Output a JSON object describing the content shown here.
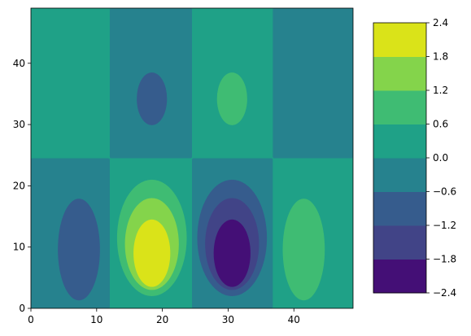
{
  "chart_data": [
    {
      "type": "heatmap",
      "style": "filled contour",
      "title": "",
      "xlabel": "",
      "ylabel": "",
      "xlim": [
        0,
        49
      ],
      "ylim": [
        0,
        49
      ],
      "x_ticks": [
        "0",
        "10",
        "20",
        "30",
        "40"
      ],
      "y_ticks": [
        "0",
        "10",
        "20",
        "30",
        "40"
      ],
      "x_tick_values": [
        0,
        10,
        20,
        30,
        40
      ],
      "y_tick_values": [
        0,
        10,
        20,
        30,
        40
      ],
      "grid": false,
      "regions": [
        {
          "kind": "rect",
          "x": [
            0,
            12
          ],
          "y": [
            24.5,
            49
          ],
          "level": "0.0 to 0.6"
        },
        {
          "kind": "rect",
          "x": [
            12,
            24.5
          ],
          "y": [
            24.5,
            49
          ],
          "level": "-0.6 to 0.0"
        },
        {
          "kind": "rect",
          "x": [
            24.5,
            36.8
          ],
          "y": [
            24.5,
            49
          ],
          "level": "0.0 to 0.6"
        },
        {
          "kind": "rect",
          "x": [
            36.8,
            49
          ],
          "y": [
            24.5,
            49
          ],
          "level": "-0.6 to 0.0"
        },
        {
          "kind": "rect",
          "x": [
            0,
            12
          ],
          "y": [
            0,
            24.5
          ],
          "level": "-0.6 to 0.0"
        },
        {
          "kind": "rect",
          "x": [
            12,
            24.5
          ],
          "y": [
            0,
            24.5
          ],
          "level": "0.0 to 0.6"
        },
        {
          "kind": "rect",
          "x": [
            24.5,
            36.8
          ],
          "y": [
            0,
            24.5
          ],
          "level": "-0.6 to 0.0"
        },
        {
          "kind": "rect",
          "x": [
            36.8,
            49
          ],
          "y": [
            0,
            24.5
          ],
          "level": "0.0 to 0.6"
        },
        {
          "kind": "ellipse",
          "cx": 18.4,
          "cy": 34.2,
          "rx": 2.3,
          "ry": 4.3,
          "level": "-1.2 to -0.6"
        },
        {
          "kind": "ellipse",
          "cx": 30.6,
          "cy": 34.2,
          "rx": 2.3,
          "ry": 4.3,
          "level": "0.6 to 1.2"
        },
        {
          "kind": "ellipse",
          "cx": 7.3,
          "cy": 9.6,
          "rx": 3.2,
          "ry": 8.3,
          "level": "-1.2 to -0.6"
        },
        {
          "kind": "ellipse",
          "cx": 41.5,
          "cy": 9.6,
          "rx": 3.2,
          "ry": 8.3,
          "level": "0.6 to 1.2"
        },
        {
          "kind": "ellipse",
          "cx": 18.4,
          "cy": 11.5,
          "rx": 5.3,
          "ry": 9.5,
          "level": "0.6 to 1.2"
        },
        {
          "kind": "ellipse",
          "cx": 18.4,
          "cy": 10.5,
          "rx": 4.1,
          "ry": 7.5,
          "level": "1.2 to 1.8"
        },
        {
          "kind": "ellipse",
          "cx": 18.4,
          "cy": 9.0,
          "rx": 2.8,
          "ry": 5.5,
          "level": "1.8 to 2.4"
        },
        {
          "kind": "ellipse",
          "cx": 30.6,
          "cy": 11.5,
          "rx": 5.3,
          "ry": 9.5,
          "level": "-1.2 to -0.6"
        },
        {
          "kind": "ellipse",
          "cx": 30.6,
          "cy": 10.5,
          "rx": 4.1,
          "ry": 7.5,
          "level": "-1.8 to -1.2"
        },
        {
          "kind": "ellipse",
          "cx": 30.6,
          "cy": 9.0,
          "rx": 2.8,
          "ry": 5.5,
          "level": "-2.4 to -1.8"
        }
      ],
      "colorbar": {
        "levels": [
          -2.4,
          -1.8,
          -1.2,
          -0.6,
          0.0,
          0.6,
          1.2,
          1.8,
          2.4
        ],
        "tick_labels": [
          "−2.4",
          "−1.8",
          "−1.2",
          "−0.6",
          "0.0",
          "0.6",
          "1.2",
          "1.8",
          "2.4"
        ],
        "colors": [
          "#440f76",
          "#414487",
          "#365c8d",
          "#26828e",
          "#1fa187",
          "#3fbc73",
          "#84d44b",
          "#dae319"
        ]
      }
    }
  ]
}
